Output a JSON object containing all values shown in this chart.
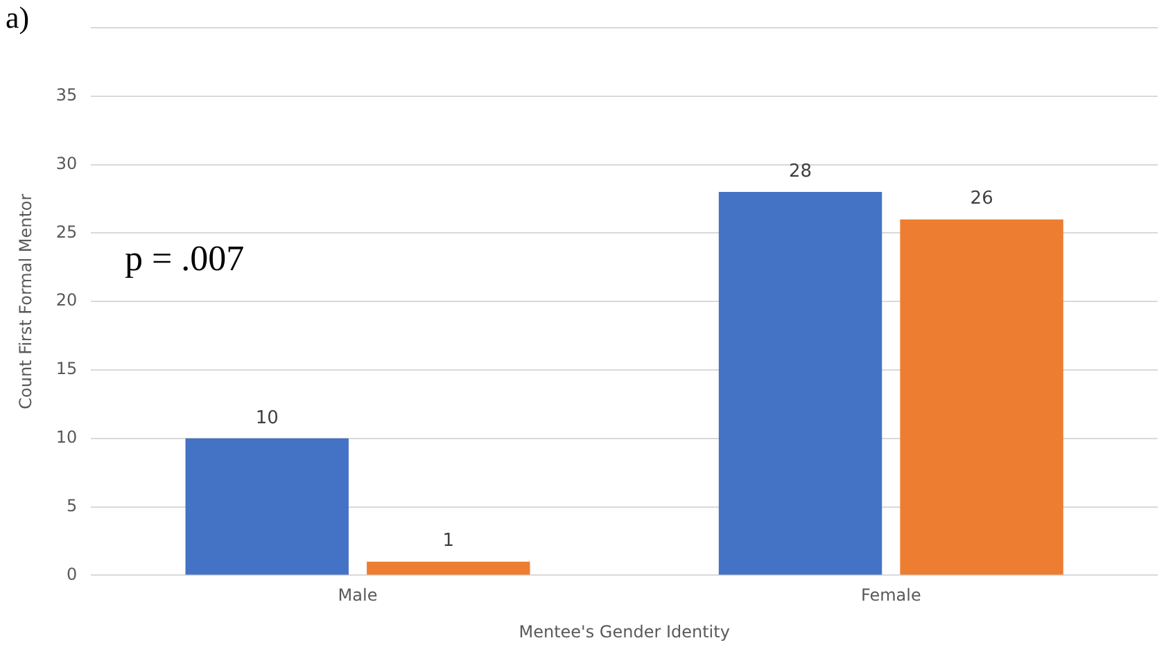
{
  "chart_data": {
    "type": "bar",
    "xlabel": "Mentee's Gender Identity",
    "ylabel": "Count First Formal Mentor",
    "categories": [
      "Male",
      "Female"
    ],
    "series": [
      {
        "color": "#4472c4",
        "values": [
          10,
          28
        ]
      },
      {
        "color": "#ed7d31",
        "values": [
          1,
          26
        ]
      }
    ],
    "ylim": [
      0,
      40
    ],
    "yticks": [
      0,
      5,
      10,
      15,
      20,
      25,
      30,
      35,
      {
        "value": 40,
        "label": null
      }
    ],
    "grid": "y",
    "legend": false,
    "data_labels": true,
    "annotations": [
      "a)",
      "p = .007"
    ]
  }
}
